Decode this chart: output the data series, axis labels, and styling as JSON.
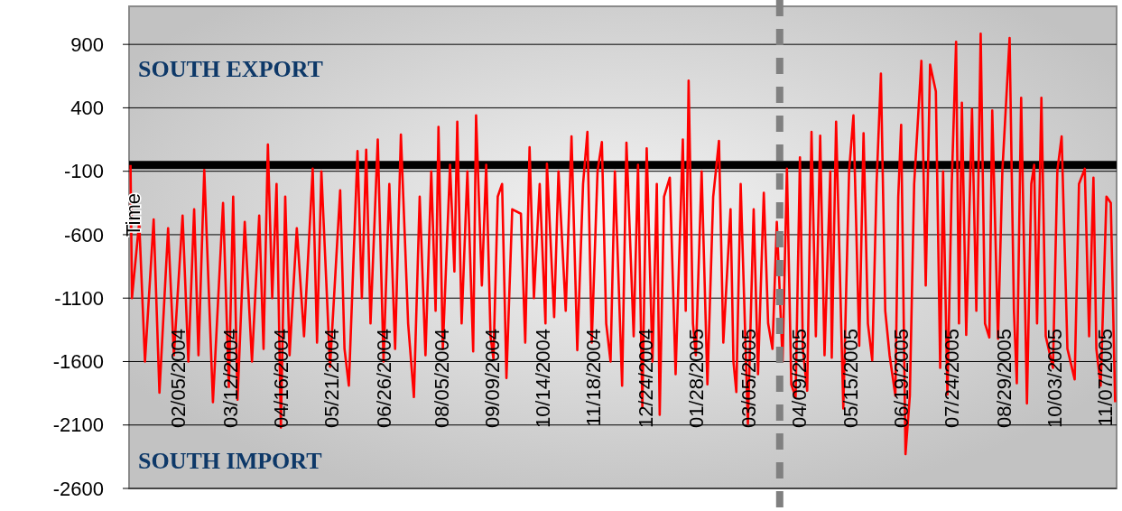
{
  "chart_data": {
    "type": "line",
    "annotations": [
      "SOUTH EXPORT",
      "SOUTH IMPORT",
      "Time"
    ],
    "xlim": [
      "2004-01-02",
      "2005-11-15"
    ],
    "ylim": [
      -2600,
      1200
    ],
    "yticks": [
      -2600,
      -2100,
      -1600,
      -1100,
      -600,
      -100,
      400,
      900
    ],
    "xticks": [
      {
        "value": "2004-02-05",
        "label": "02/05/2004"
      },
      {
        "value": "2004-03-12",
        "label": "03/12/2004"
      },
      {
        "value": "2004-04-16",
        "label": "04/16/2004"
      },
      {
        "value": "2004-05-21",
        "label": "05/21/2004"
      },
      {
        "value": "2004-06-26",
        "label": "06/26/2004"
      },
      {
        "value": "2004-08-05",
        "label": "08/05/2004"
      },
      {
        "value": "2004-09-09",
        "label": "09/09/2004"
      },
      {
        "value": "2004-10-14",
        "label": "10/14/2004"
      },
      {
        "value": "2004-11-18",
        "label": "11/18/2004"
      },
      {
        "value": "2004-12-24",
        "label": "12/24/2004"
      },
      {
        "value": "2005-01-28",
        "label": "01/28/2005"
      },
      {
        "value": "2005-03-05",
        "label": "03/05/2005"
      },
      {
        "value": "2005-04-09",
        "label": "04/09/2005"
      },
      {
        "value": "2005-05-15",
        "label": "05/15/2005"
      },
      {
        "value": "2005-06-19",
        "label": "06/19/2005"
      },
      {
        "value": "2005-07-24",
        "label": "07/24/2005"
      },
      {
        "value": "2005-08-29",
        "label": "08/29/2005"
      },
      {
        "value": "2005-10-03",
        "label": "10/03/2005"
      },
      {
        "value": "2005-11-07",
        "label": "11/07/2005"
      }
    ],
    "grid": "y",
    "marker": "none",
    "line_style": "solid",
    "ref_lines": [
      {
        "axis": "y",
        "value": -50,
        "color": "#000000",
        "line_style": "solid"
      },
      {
        "axis": "x",
        "value": "2005-03-27",
        "color": "#808080",
        "line_style": "dashed"
      }
    ],
    "series": [
      {
        "color": "#ff0000",
        "x": [
          "2004-01-03",
          "2004-01-04",
          "2004-01-09",
          "2004-01-13",
          "2004-01-19",
          "2004-01-23",
          "2004-01-29",
          "2004-02-02",
          "2004-02-08",
          "2004-02-12",
          "2004-02-16",
          "2004-02-19",
          "2004-02-23",
          "2004-02-29",
          "2004-03-07",
          "2004-03-11",
          "2004-03-14",
          "2004-03-17",
          "2004-03-22",
          "2004-03-27",
          "2004-04-01",
          "2004-04-04",
          "2004-04-07",
          "2004-04-10",
          "2004-04-13",
          "2004-04-16",
          "2004-04-19",
          "2004-04-22",
          "2004-04-27",
          "2004-05-02",
          "2004-05-08",
          "2004-05-11",
          "2004-05-14",
          "2004-05-20",
          "2004-05-27",
          "2004-05-30",
          "2004-06-02",
          "2004-06-08",
          "2004-06-11",
          "2004-06-14",
          "2004-06-17",
          "2004-06-22",
          "2004-06-26",
          "2004-06-30",
          "2004-07-04",
          "2004-07-08",
          "2004-07-13",
          "2004-07-17",
          "2004-07-21",
          "2004-07-25",
          "2004-07-29",
          "2004-08-01",
          "2004-08-03",
          "2004-08-06",
          "2004-08-11",
          "2004-08-14",
          "2004-08-16",
          "2004-08-19",
          "2004-08-23",
          "2004-08-27",
          "2004-08-29",
          "2004-09-02",
          "2004-09-05",
          "2004-09-08",
          "2004-09-10",
          "2004-09-13",
          "2004-09-16",
          "2004-09-19",
          "2004-09-23",
          "2004-09-29",
          "2004-10-02",
          "2004-10-05",
          "2004-10-08",
          "2004-10-12",
          "2004-10-16",
          "2004-10-17",
          "2004-10-22",
          "2004-10-25",
          "2004-10-30",
          "2004-11-03",
          "2004-11-07",
          "2004-11-11",
          "2004-11-14",
          "2004-11-17",
          "2004-11-21",
          "2004-11-24",
          "2004-11-27",
          "2004-11-30",
          "2004-12-03",
          "2004-12-08",
          "2004-12-11",
          "2004-12-16",
          "2004-12-19",
          "2004-12-22",
          "2004-12-25",
          "2004-12-29",
          "2005-01-01",
          "2005-01-03",
          "2005-01-06",
          "2005-01-10",
          "2005-01-14",
          "2005-01-19",
          "2005-01-21",
          "2005-01-23",
          "2005-01-26",
          "2005-01-28",
          "2005-02-01",
          "2005-02-05",
          "2005-02-09",
          "2005-02-13",
          "2005-02-16",
          "2005-02-21",
          "2005-02-23",
          "2005-02-25",
          "2005-02-28",
          "2005-03-05",
          "2005-03-09",
          "2005-03-12",
          "2005-03-16",
          "2005-03-19",
          "2005-03-22",
          "2005-03-25",
          "2005-03-29",
          "2005-04-01",
          "2005-04-04",
          "2005-04-07",
          "2005-04-10",
          "2005-04-12",
          "2005-04-15",
          "2005-04-18",
          "2005-04-21",
          "2005-04-24",
          "2005-04-27",
          "2005-05-01",
          "2005-05-02",
          "2005-05-05",
          "2005-05-10",
          "2005-05-14",
          "2005-05-17",
          "2005-05-21",
          "2005-05-24",
          "2005-05-27",
          "2005-05-30",
          "2005-06-02",
          "2005-06-05",
          "2005-06-08",
          "2005-06-11",
          "2005-06-15",
          "2005-06-17",
          "2005-06-19",
          "2005-06-22",
          "2005-06-25",
          "2005-06-28",
          "2005-07-03",
          "2005-07-06",
          "2005-07-09",
          "2005-07-13",
          "2005-07-16",
          "2005-07-18",
          "2005-07-21",
          "2005-07-24",
          "2005-07-27",
          "2005-07-29",
          "2005-07-31",
          "2005-08-03",
          "2005-08-07",
          "2005-08-10",
          "2005-08-13",
          "2005-08-16",
          "2005-08-19",
          "2005-08-21",
          "2005-08-25",
          "2005-08-28",
          "2005-09-02",
          "2005-09-05",
          "2005-09-07",
          "2005-09-10",
          "2005-09-14",
          "2005-09-17",
          "2005-09-19",
          "2005-09-21",
          "2005-09-24",
          "2005-09-27",
          "2005-10-02",
          "2005-10-05",
          "2005-10-08",
          "2005-10-12",
          "2005-10-17",
          "2005-10-20",
          "2005-10-24",
          "2005-10-27",
          "2005-10-30",
          "2005-11-01",
          "2005-11-04",
          "2005-11-08",
          "2005-11-11",
          "2005-11-14"
        ],
        "values": [
          -50,
          -1100,
          -500,
          -1600,
          -480,
          -1845,
          -550,
          -1550,
          -450,
          -1600,
          -400,
          -1550,
          -90,
          -1920,
          -350,
          -1800,
          -300,
          -1900,
          -500,
          -1600,
          -450,
          -1500,
          110,
          -1100,
          -200,
          -2120,
          -300,
          -1550,
          -550,
          -1400,
          -80,
          -1450,
          -100,
          -1640,
          -250,
          -1500,
          -1790,
          60,
          -1100,
          70,
          -1300,
          150,
          -1600,
          -200,
          -1500,
          190,
          -1300,
          -1880,
          -300,
          -1550,
          -100,
          -1200,
          250,
          -1500,
          -50,
          -890,
          290,
          -1300,
          -100,
          -1520,
          340,
          -1000,
          -50,
          -1400,
          -1580,
          -300,
          -200,
          -1730,
          -400,
          -435,
          -1450,
          90,
          -1100,
          -200,
          -1300,
          -40,
          -1250,
          -100,
          -1200,
          175,
          -1510,
          -200,
          210,
          -1450,
          -100,
          130,
          -1300,
          -1600,
          -100,
          -1790,
          125,
          -1400,
          -50,
          -1960,
          80,
          -1600,
          -200,
          -2020,
          -300,
          -150,
          -1700,
          150,
          -1200,
          615,
          -1300,
          -1550,
          -100,
          -1780,
          -300,
          140,
          -1450,
          -400,
          -1600,
          -1840,
          -200,
          -2090,
          -400,
          -1700,
          -270,
          -1300,
          -1500,
          -500,
          -1600,
          -80,
          -1780,
          -1880,
          10,
          -1500,
          -1830,
          210,
          -1400,
          180,
          -1550,
          -100,
          -1570,
          290,
          -1970,
          -100,
          340,
          -1475,
          200,
          -1300,
          -1590,
          -200,
          670,
          -1200,
          -1550,
          -1870,
          -300,
          265,
          -2330,
          -1870,
          -200,
          770,
          -1000,
          740,
          530,
          -1650,
          -100,
          -1860,
          -200,
          920,
          -1300,
          440,
          -1390,
          390,
          -1200,
          985,
          -1300,
          -1410,
          380,
          -1420,
          -100,
          950,
          -1200,
          -1770,
          480,
          -1930,
          -200,
          -50,
          -1300,
          480,
          -1400,
          -1650,
          -100,
          175,
          -1500,
          -1740,
          -200,
          -80,
          -1400,
          -150,
          -1500,
          -1790,
          -300,
          -350,
          -1920
        ]
      }
    ]
  }
}
